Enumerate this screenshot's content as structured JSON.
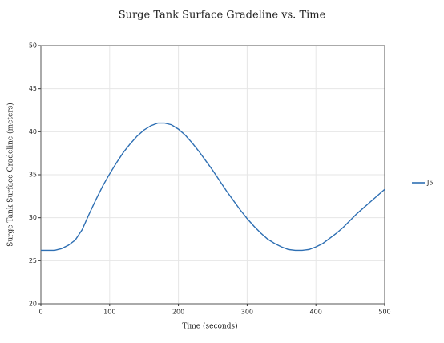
{
  "chart_data": {
    "type": "line",
    "title": "Surge Tank Surface Gradeline vs. Time",
    "x_label": "Time (seconds)",
    "y_label": "Surge Tank Surface Gradeline (meters)",
    "x": [
      0,
      10,
      20,
      30,
      40,
      50,
      60,
      70,
      80,
      90,
      100,
      110,
      120,
      130,
      140,
      150,
      160,
      170,
      180,
      190,
      200,
      210,
      220,
      230,
      240,
      250,
      260,
      270,
      280,
      290,
      300,
      310,
      320,
      330,
      340,
      350,
      360,
      370,
      380,
      390,
      400,
      410,
      420,
      430,
      440,
      450,
      460,
      470,
      480,
      490,
      500
    ],
    "series": [
      {
        "name": "J5",
        "color": "#2e6fb3",
        "values": [
          26.2,
          26.2,
          26.2,
          26.4,
          26.8,
          27.4,
          28.6,
          30.4,
          32.1,
          33.7,
          35.1,
          36.4,
          37.6,
          38.6,
          39.5,
          40.2,
          40.7,
          41.0,
          41.0,
          40.8,
          40.3,
          39.6,
          38.7,
          37.7,
          36.6,
          35.5,
          34.3,
          33.1,
          32.0,
          30.9,
          29.9,
          29.0,
          28.2,
          27.5,
          27.0,
          26.6,
          26.3,
          26.2,
          26.2,
          26.3,
          26.6,
          27.0,
          27.6,
          28.2,
          28.9,
          29.7,
          30.5,
          31.2,
          31.9,
          32.6,
          33.3
        ]
      }
    ],
    "xlim": [
      0,
      500
    ],
    "xticks": [
      0,
      100,
      200,
      300,
      400,
      500
    ],
    "ylim": [
      20,
      50
    ],
    "yticks": [
      20,
      25,
      30,
      35,
      40,
      45,
      50
    ],
    "grid": true,
    "legend": "right"
  }
}
